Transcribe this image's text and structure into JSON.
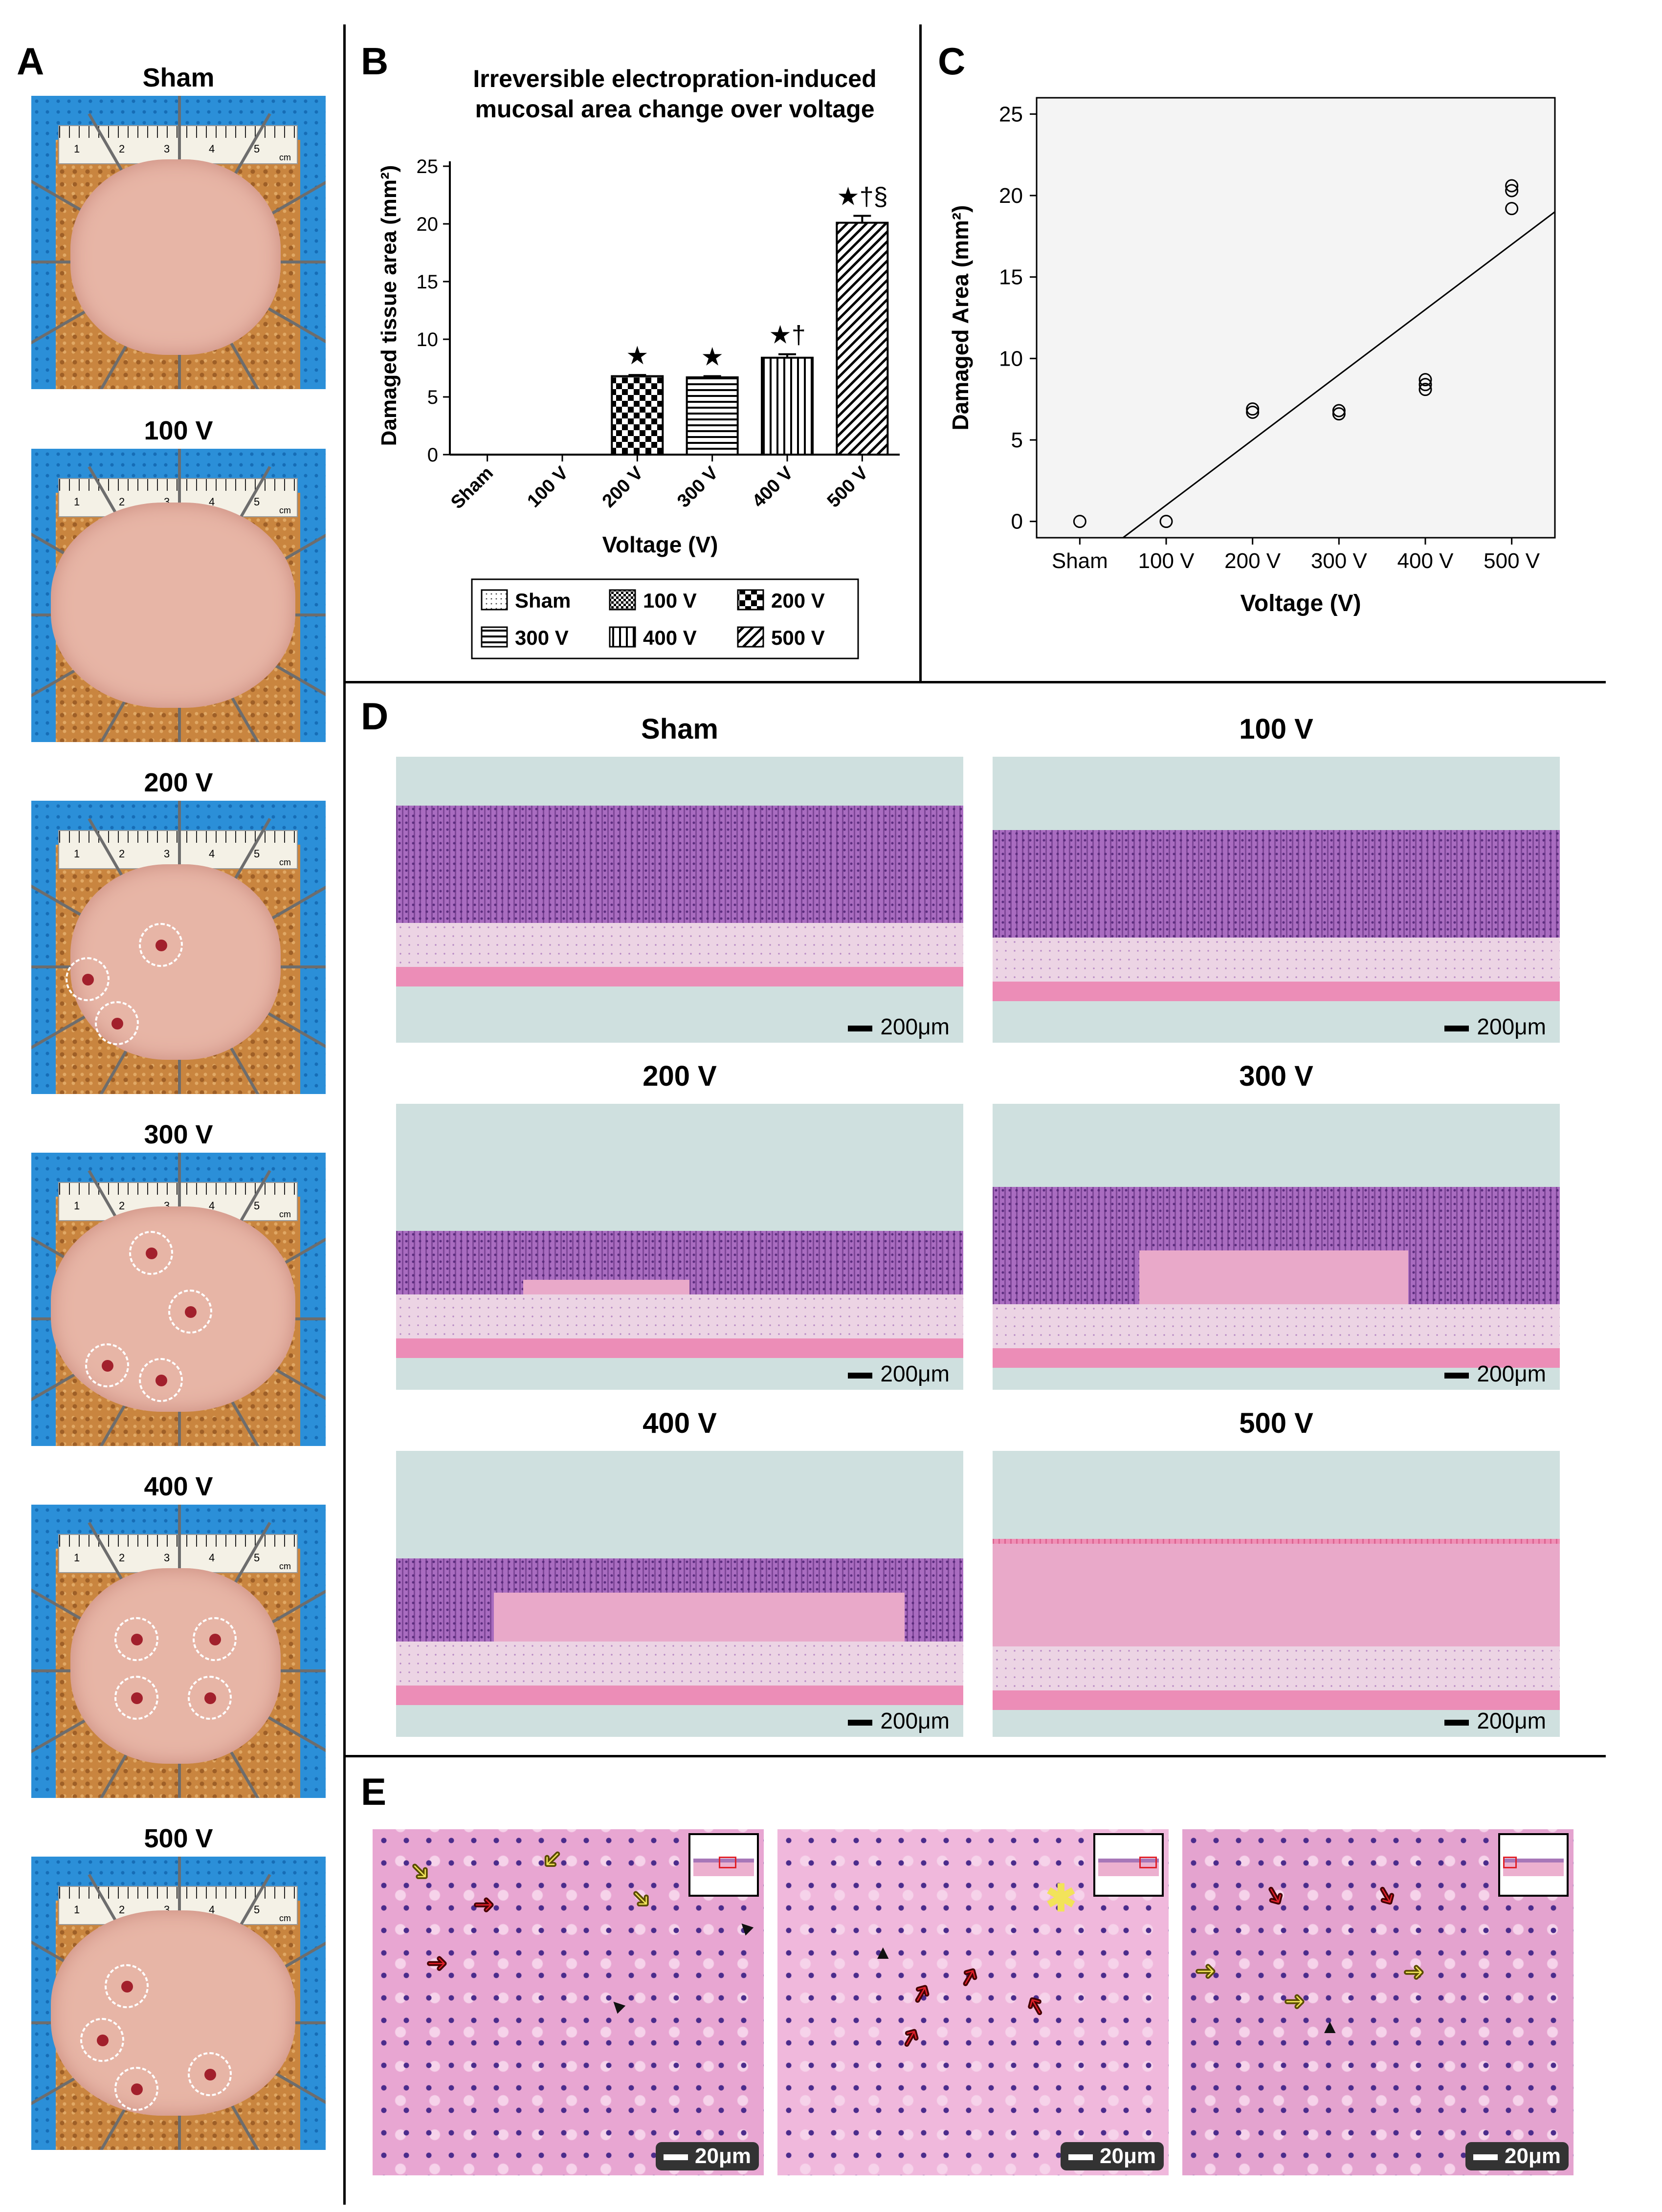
{
  "figure": {
    "panel_labels": {
      "a": "A",
      "b": "B",
      "c": "C",
      "d": "D",
      "e": "E"
    }
  },
  "panel_a": {
    "titles": [
      "Sham",
      "100 V",
      "200 V",
      "300 V",
      "400 V",
      "500 V"
    ],
    "ruler_unit": "cm",
    "ruler_ticks": [
      "1",
      "2",
      "3",
      "4",
      "5"
    ]
  },
  "panel_b": {
    "title_line1": "Irreversible electropration-induced",
    "title_line2": "mucosal area change over voltage",
    "ylabel": "Damaged tissue area (mm²)",
    "xlabel": "Voltage (V)",
    "yticks": [
      "0",
      "5",
      "10",
      "15",
      "20",
      "25"
    ],
    "sig_marks": [
      "",
      "",
      "★",
      "★",
      "★†",
      "★†§"
    ],
    "legend": [
      "Sham",
      "100 V",
      "200 V",
      "300 V",
      "400 V",
      "500 V"
    ]
  },
  "panel_c": {
    "xlabel": "Voltage (V)",
    "ylabel": "Damaged Area (mm²)",
    "yticks": [
      "0",
      "5",
      "10",
      "15",
      "20",
      "25"
    ],
    "xticks": [
      "Sham",
      "100 V",
      "200 V",
      "300 V",
      "400 V",
      "500 V"
    ]
  },
  "panel_d": {
    "titles": [
      "Sham",
      "100 V",
      "200 V",
      "300 V",
      "400 V",
      "500 V"
    ],
    "scale": "200μm"
  },
  "panel_e": {
    "scale": "20μm"
  },
  "chart_data": [
    {
      "type": "bar",
      "panel": "B",
      "title": "Irreversible electropration-induced mucosal area change over voltage",
      "xlabel": "Voltage (V)",
      "ylabel": "Damaged tissue area (mm²)",
      "categories": [
        "Sham",
        "100 V",
        "200 V",
        "300 V",
        "400 V",
        "500 V"
      ],
      "values": [
        0,
        0,
        6.8,
        6.7,
        8.4,
        20.1
      ],
      "error": [
        0,
        0,
        0.1,
        0.1,
        0.3,
        0.6
      ],
      "ylim": [
        0,
        25
      ],
      "legend_position": "bottom"
    },
    {
      "type": "scatter",
      "panel": "C",
      "xlabel": "Voltage (V)",
      "ylabel": "Damaged Area (mm²)",
      "categories": [
        "Sham",
        "100 V",
        "200 V",
        "300 V",
        "400 V",
        "500 V"
      ],
      "points": [
        {
          "x": "Sham",
          "y": 0
        },
        {
          "x": "100 V",
          "y": 0
        },
        {
          "x": "200 V",
          "y": 6.7
        },
        {
          "x": "200 V",
          "y": 6.9
        },
        {
          "x": "300 V",
          "y": 6.6
        },
        {
          "x": "300 V",
          "y": 6.8
        },
        {
          "x": "400 V",
          "y": 8.1
        },
        {
          "x": "400 V",
          "y": 8.4
        },
        {
          "x": "400 V",
          "y": 8.7
        },
        {
          "x": "500 V",
          "y": 19.2
        },
        {
          "x": "500 V",
          "y": 20.3
        },
        {
          "x": "500 V",
          "y": 20.6
        }
      ],
      "fit_line": {
        "x_start": "Sham",
        "y_start": -3.0,
        "x_end": "500 V",
        "y_end": 17.0
      },
      "ylim": [
        -1,
        26
      ],
      "grid": false
    }
  ]
}
